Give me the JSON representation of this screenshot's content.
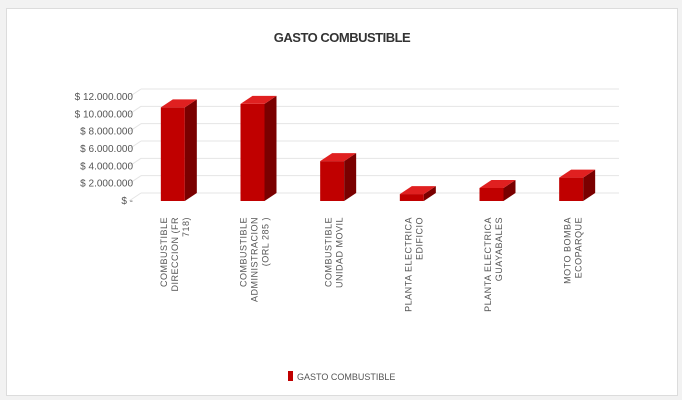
{
  "chart_data": {
    "type": "bar",
    "title": "GASTO COMBUSTIBLE",
    "xlabel": "",
    "ylabel": "",
    "categories": [
      [
        "COMBUSTIBLE",
        "DIRECCION (FR",
        "718)"
      ],
      [
        "COMBUSTIBLE",
        "ADMINISTRACION",
        "(ORL 285 )"
      ],
      [
        "COMBUSTIBLE",
        "UNIDAD MOVIL"
      ],
      [
        "PLANTA ELECTRICA",
        "EDIFICIO"
      ],
      [
        "PLANTA ELECTRICA",
        "GUAYABALES"
      ],
      [
        "MOTO BOMBA",
        "ECOPARQUE"
      ]
    ],
    "series": [
      {
        "name": "GASTO COMBUSTIBLE",
        "values": [
          10800000,
          11200000,
          4600000,
          800000,
          1500000,
          2700000
        ]
      }
    ],
    "ylim": [
      0,
      12000000
    ],
    "yticks": [
      "$ -",
      "$ 2.000.000",
      "$ 4.000.000",
      "$ 6.000.000",
      "$ 8.000.000",
      "$ 10.000.000",
      "$ 12.000.000"
    ],
    "grid": true,
    "legend_position": "bottom",
    "colors": {
      "front": "#c00000",
      "side": "#7a0000",
      "top": "#e02020"
    }
  }
}
